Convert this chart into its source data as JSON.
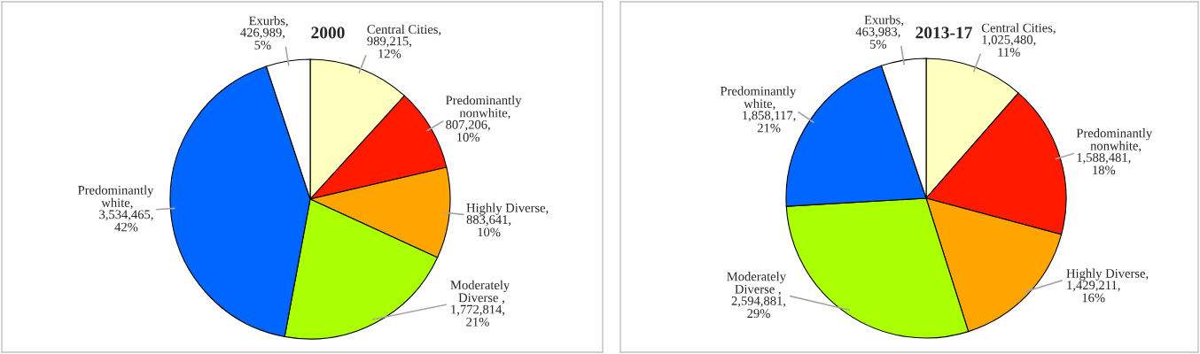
{
  "chart_data": [
    {
      "type": "pie",
      "title": "2000",
      "categories": [
        "Central Cities",
        "Predominantly nonwhite",
        "Highly Diverse",
        "Moderately Diverse ",
        "Predominantly white",
        "Exurbs"
      ],
      "values": [
        989215,
        807206,
        883641,
        1772814,
        3534465,
        426989
      ],
      "value_labels": [
        ",\n989,215,\n12%",
        ",\n807,206,\n10%",
        ",\n883,641,\n10%",
        ",\n1,772,814,\n21%",
        ",\n3,534,465,\n42%",
        ",\n426,989,\n5%"
      ],
      "colors": [
        "#ffffc0",
        "#ff1a00",
        "#ffa500",
        "#aaff00",
        "#0066ff",
        "#ffffff"
      ]
    },
    {
      "type": "pie",
      "title": "2013-17",
      "categories": [
        "Central Cities",
        "Predominantly nonwhite",
        "Highly Diverse",
        "Moderately Diverse ",
        "Predominantly white",
        "Exurbs"
      ],
      "values": [
        1025480,
        1588481,
        1429211,
        2594881,
        1858117,
        463983
      ],
      "value_labels": [
        ",\n1,025,480,\n11%",
        ",\n1,588,481,\n18%",
        ",\n1,429,211,\n16%",
        ",\n2,594,881,\n29%",
        ",\n1,858,117,\n21%",
        ",\n463,983,\n5%"
      ],
      "colors": [
        "#ffffc0",
        "#ff1a00",
        "#ffa500",
        "#aaff00",
        "#0066ff",
        "#ffffff"
      ]
    }
  ]
}
